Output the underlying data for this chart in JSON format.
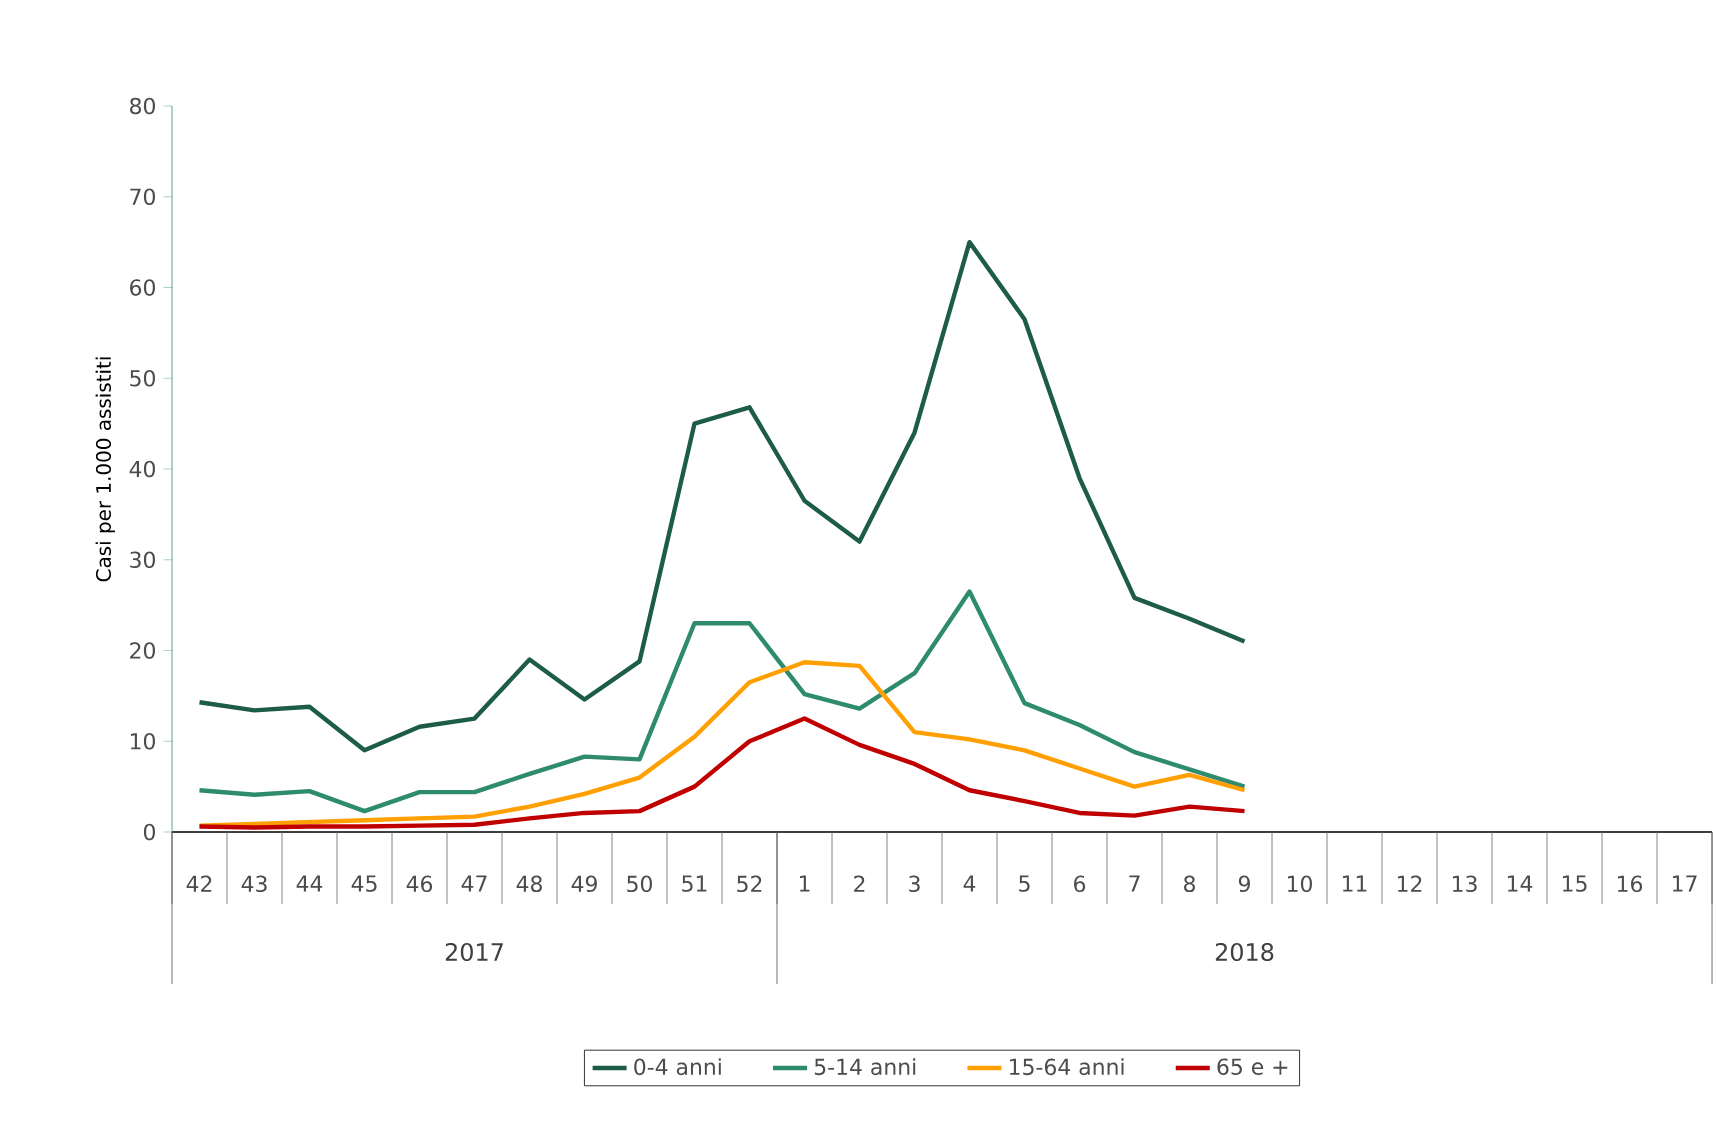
{
  "chart_data": {
    "type": "line",
    "ylabel": "Casi per 1.000 assistiti",
    "categories": [
      "42",
      "43",
      "44",
      "45",
      "46",
      "47",
      "48",
      "49",
      "50",
      "51",
      "52",
      "1",
      "2",
      "3",
      "4",
      "5",
      "6",
      "7",
      "8",
      "9",
      "10",
      "11",
      "12",
      "13",
      "14",
      "15",
      "16",
      "17"
    ],
    "series": [
      {
        "name": "0-4 anni",
        "color": "#1e5c4a",
        "values": [
          14.3,
          13.4,
          13.8,
          9,
          11.6,
          12.5,
          19,
          14.6,
          18.8,
          45,
          46.8,
          36.5,
          32,
          44,
          65,
          56.5,
          39,
          25.8,
          23.5,
          21,
          null,
          null,
          null,
          null,
          null,
          null,
          null,
          null
        ]
      },
      {
        "name": "5-14 anni",
        "color": "#2e8b6e",
        "values": [
          4.6,
          4.1,
          4.5,
          2.3,
          4.4,
          4.4,
          6.4,
          8.3,
          8,
          23,
          23,
          15.2,
          13.6,
          17.5,
          26.5,
          14.2,
          11.8,
          8.8,
          6.9,
          5,
          null,
          null,
          null,
          null,
          null,
          null,
          null,
          null
        ]
      },
      {
        "name": "15-64 anni",
        "color": "#ffa000",
        "values": [
          0.7,
          0.9,
          1.1,
          1.3,
          1.5,
          1.7,
          2.8,
          4.2,
          6,
          10.5,
          16.5,
          18.7,
          18.3,
          11,
          10.2,
          9,
          7,
          5,
          6.3,
          4.6,
          null,
          null,
          null,
          null,
          null,
          null,
          null,
          null
        ]
      },
      {
        "name": "65 e +",
        "color": "#c00000",
        "values": [
          0.6,
          0.5,
          0.6,
          0.6,
          0.7,
          0.8,
          1.5,
          2.1,
          2.3,
          5,
          10,
          12.5,
          9.6,
          7.5,
          4.6,
          3.4,
          2.1,
          1.8,
          2.8,
          2.3,
          null,
          null,
          null,
          null,
          null,
          null,
          null,
          null
        ]
      }
    ],
    "annotations": [
      "2017",
      "2018"
    ],
    "ylim": [
      0,
      80
    ],
    "yticks": [
      0,
      10,
      20,
      30,
      40,
      50,
      60,
      70,
      80
    ],
    "grid": false,
    "legend": "bottom",
    "marker": "none",
    "line_style": "solid"
  }
}
